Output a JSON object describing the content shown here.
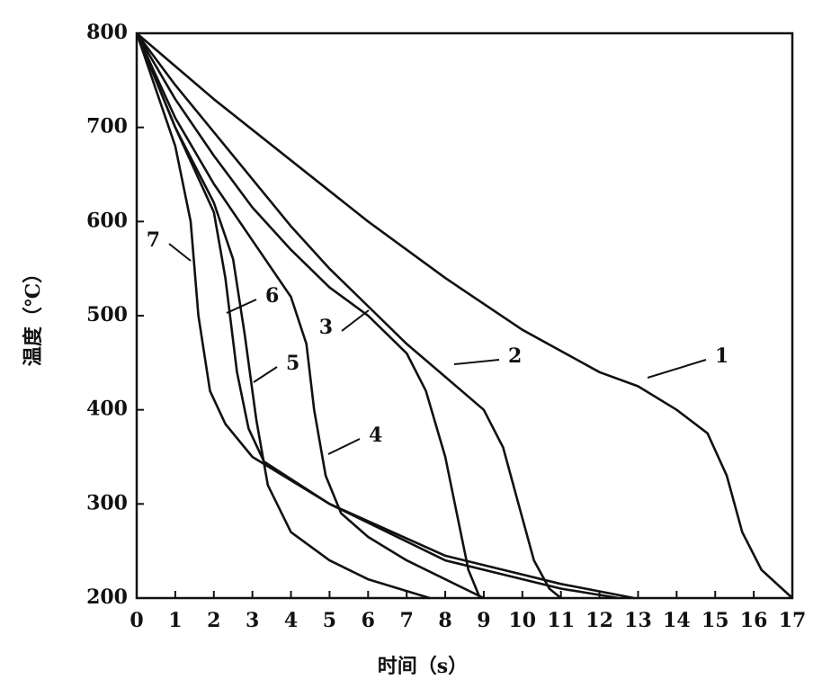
{
  "chart_data": {
    "type": "line",
    "x_label": "时间（s）",
    "y_label": "温度（℃）",
    "xlim": [
      0,
      17
    ],
    "xticks": [
      0,
      1,
      2,
      3,
      4,
      5,
      6,
      7,
      8,
      9,
      10,
      11,
      12,
      13,
      14,
      15,
      16,
      17
    ],
    "ylim": [
      200,
      800
    ],
    "yticks": [
      200,
      300,
      400,
      500,
      600,
      700,
      800
    ],
    "color": "#111111",
    "series": [
      {
        "name": "1",
        "x": [
          0,
          2,
          4,
          6,
          8,
          10,
          12,
          13,
          14,
          14.8,
          15.3,
          15.7,
          16.2,
          17
        ],
        "values": [
          800,
          730,
          665,
          600,
          540,
          485,
          440,
          425,
          400,
          375,
          330,
          270,
          230,
          200
        ]
      },
      {
        "name": "2",
        "x": [
          0,
          1,
          2,
          3,
          4,
          5,
          6,
          7,
          8,
          9,
          9.5,
          9.9,
          10.3,
          10.7,
          11
        ],
        "values": [
          800,
          745,
          695,
          645,
          595,
          550,
          510,
          470,
          435,
          400,
          360,
          300,
          240,
          210,
          200
        ]
      },
      {
        "name": "3",
        "x": [
          0,
          1,
          2,
          3,
          4,
          5,
          6,
          7,
          7.5,
          8,
          8.3,
          8.6,
          8.9
        ],
        "values": [
          800,
          730,
          670,
          615,
          570,
          530,
          500,
          460,
          420,
          350,
          290,
          230,
          200
        ]
      },
      {
        "name": "4",
        "x": [
          0,
          1,
          2,
          3,
          4,
          4.4,
          4.6,
          4.9,
          5.3,
          6,
          7,
          8,
          9
        ],
        "values": [
          800,
          710,
          640,
          580,
          520,
          470,
          400,
          330,
          290,
          265,
          240,
          220,
          200
        ]
      },
      {
        "name": "5",
        "x": [
          0,
          1,
          2,
          2.5,
          2.8,
          3.1,
          3.4,
          4,
          5,
          6,
          7.6
        ],
        "values": [
          800,
          700,
          620,
          560,
          480,
          390,
          320,
          270,
          240,
          220,
          200
        ]
      },
      {
        "name": "6",
        "x": [
          0,
          1,
          2,
          2.3,
          2.6,
          2.9,
          3.3,
          5,
          8,
          11,
          12.5
        ],
        "values": [
          800,
          700,
          610,
          540,
          440,
          380,
          345,
          300,
          240,
          210,
          200
        ]
      },
      {
        "name": "7",
        "x": [
          0,
          1,
          1.4,
          1.6,
          1.9,
          2.3,
          3,
          5,
          8,
          11,
          12.9
        ],
        "values": [
          800,
          680,
          600,
          500,
          420,
          385,
          350,
          300,
          245,
          215,
          200
        ]
      }
    ]
  }
}
